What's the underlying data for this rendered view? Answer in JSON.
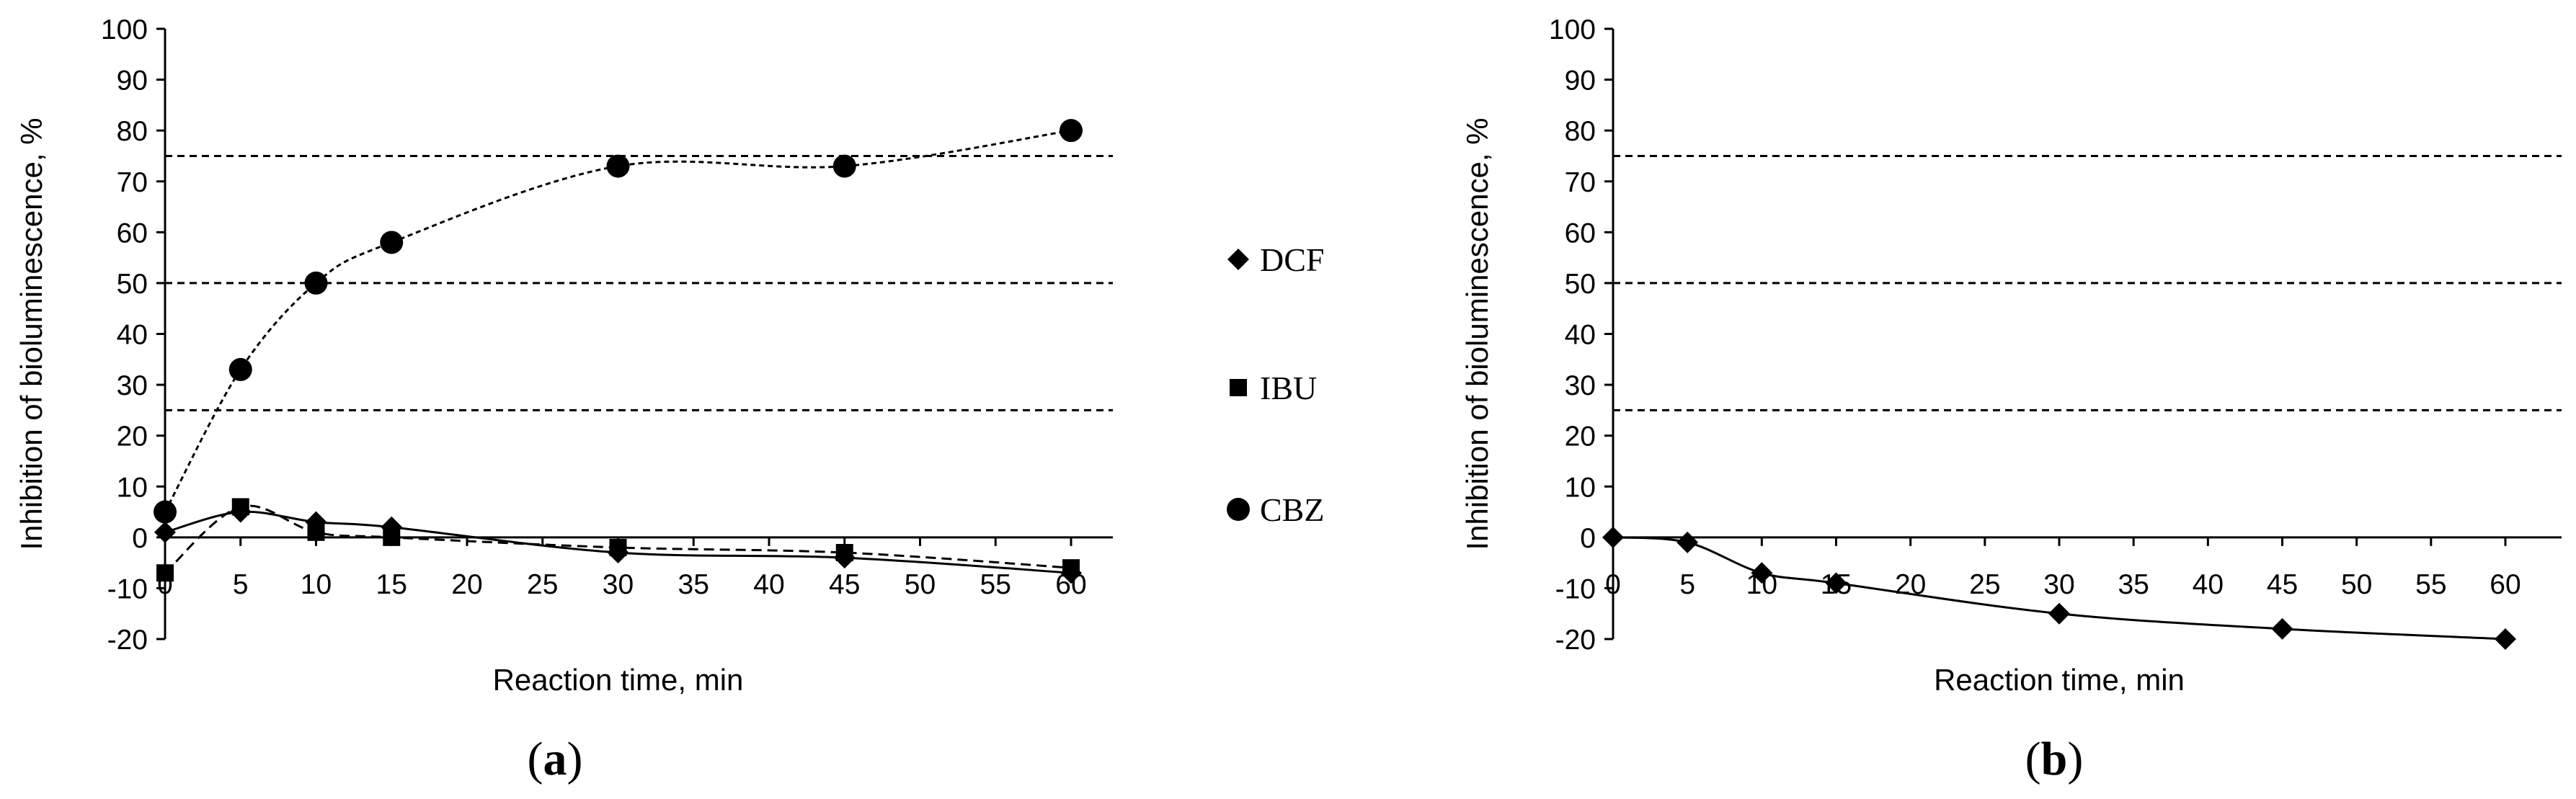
{
  "chart_data": [
    {
      "panel_label": {
        "open": "(",
        "letter": "a",
        "close": ")"
      },
      "type": "scatter",
      "xlabel": "Reaction time,  min",
      "ylabel": "Inhibition of bioluminescence, %",
      "xlim": [
        0,
        60
      ],
      "ylim": [
        -20,
        100
      ],
      "xticks": [
        "0",
        "5",
        "10",
        "15",
        "20",
        "25",
        "30",
        "35",
        "40",
        "45",
        "50",
        "55",
        "60"
      ],
      "yticks": [
        "-20",
        "-10",
        "0",
        "10",
        "20",
        "30",
        "40",
        "50",
        "60",
        "70",
        "80",
        "90",
        "100"
      ],
      "reference_lines": [
        25,
        50,
        75
      ],
      "legend_position": "right",
      "series": [
        {
          "name": "DCF",
          "marker": "diamond",
          "trend": "solid",
          "x": [
            0,
            5,
            10,
            15,
            30,
            45,
            60
          ],
          "y": [
            1,
            5,
            3,
            2,
            -3,
            -4,
            -7
          ]
        },
        {
          "name": "IBU",
          "marker": "square",
          "trend": "dashed",
          "x": [
            0,
            5,
            10,
            15,
            30,
            45,
            60
          ],
          "y": [
            -7,
            6,
            1,
            0,
            -2,
            -3,
            -6
          ]
        },
        {
          "name": "CBZ",
          "marker": "circle",
          "trend": "dotted",
          "x": [
            0,
            5,
            10,
            15,
            30,
            45,
            60
          ],
          "y": [
            5,
            33,
            50,
            58,
            73,
            73,
            80
          ]
        }
      ]
    },
    {
      "panel_label": {
        "open": "(",
        "letter": "b",
        "close": ")"
      },
      "type": "scatter",
      "xlabel": "Reaction time,  min",
      "ylabel": "Inhibition of bioluminescence, %",
      "xlim": [
        0,
        60
      ],
      "ylim": [
        -20,
        100
      ],
      "xticks": [
        "0",
        "5",
        "10",
        "15",
        "20",
        "25",
        "30",
        "35",
        "40",
        "45",
        "50",
        "55",
        "60"
      ],
      "yticks": [
        "-20",
        "-10",
        "0",
        "10",
        "20",
        "30",
        "40",
        "50",
        "60",
        "70",
        "80",
        "90",
        "100"
      ],
      "reference_lines": [
        25,
        50,
        75
      ],
      "series": [
        {
          "marker": "diamond",
          "trend": "solid",
          "x": [
            0,
            5,
            10,
            15,
            30,
            45,
            60
          ],
          "y": [
            0,
            -1,
            -7,
            -9,
            -15,
            -18,
            -20
          ]
        }
      ]
    }
  ]
}
